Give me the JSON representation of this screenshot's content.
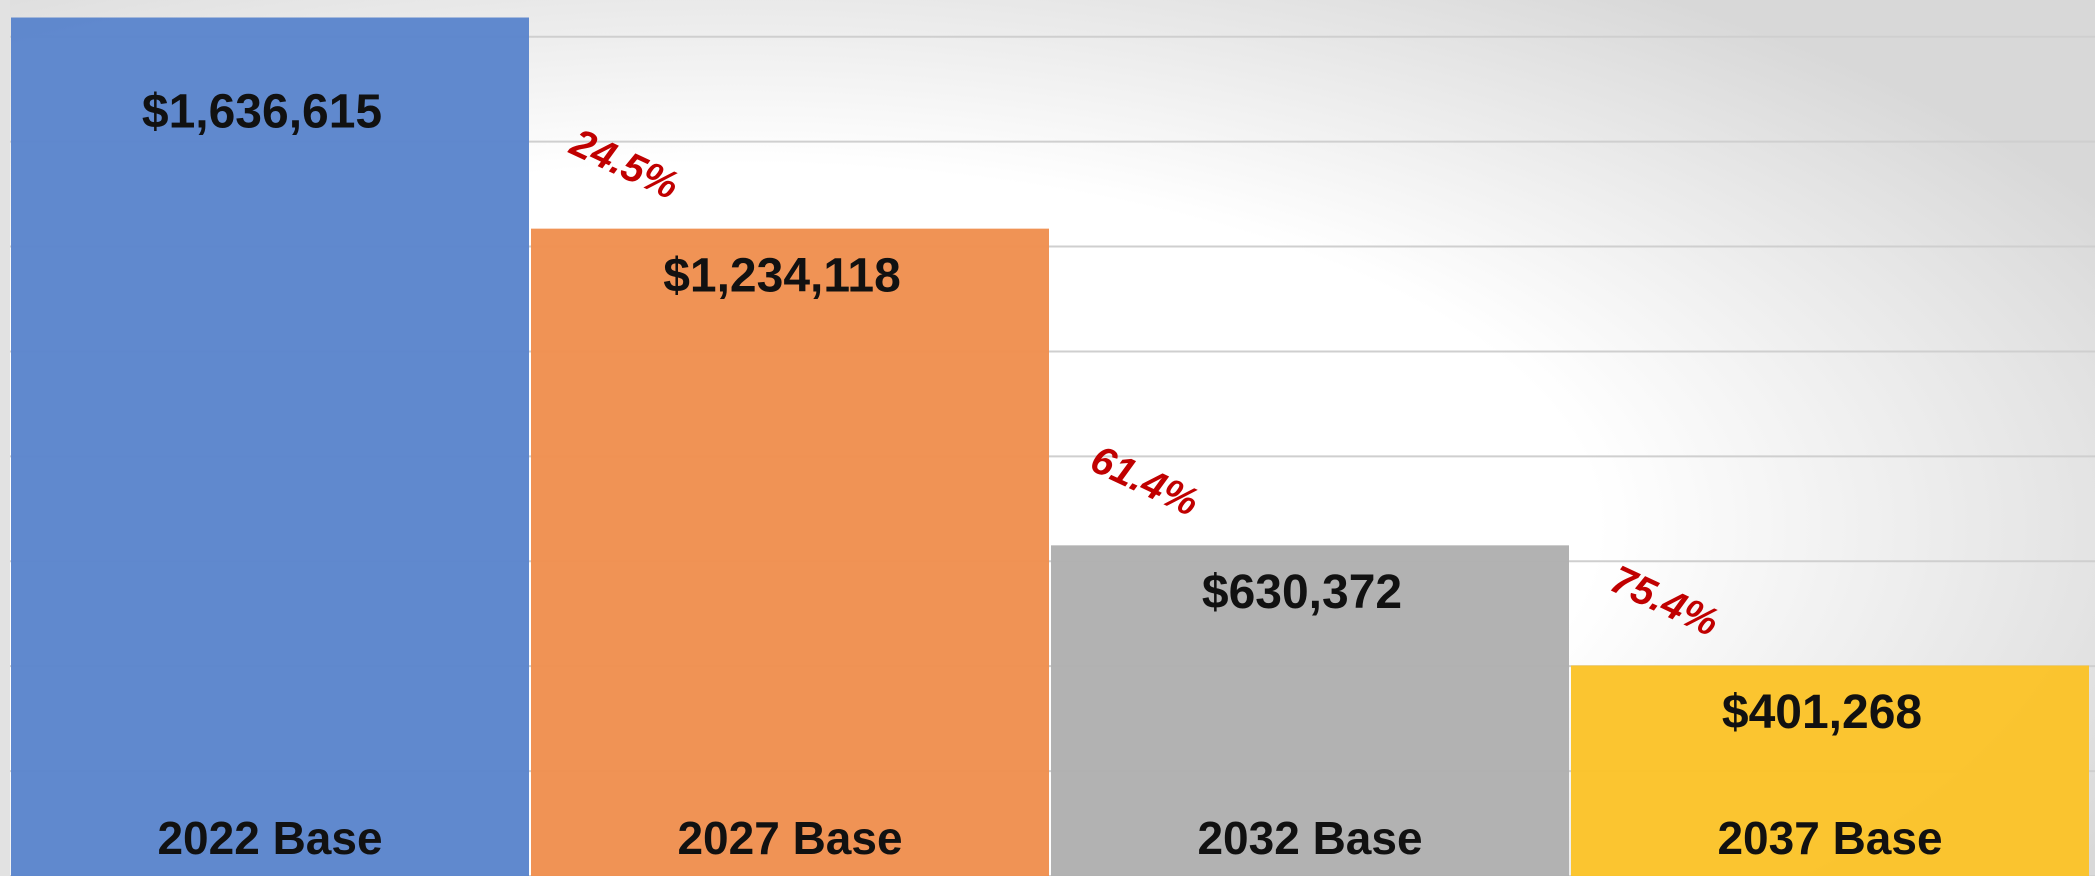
{
  "chart_data": {
    "type": "bar",
    "categories": [
      "2022 Base",
      "2027 Base",
      "2032 Base",
      "2037 Base"
    ],
    "values": [
      1636615,
      1234118,
      630372,
      401268
    ],
    "value_labels": [
      "$1,636,615",
      "$1,234,118",
      "$630,372",
      "$401,268"
    ],
    "colors": [
      "#5b85cc",
      "#ef8f4f",
      "#b0b0b0",
      "#fbc329"
    ],
    "annotations": [
      "24.5%",
      "61.4%",
      "75.4%"
    ],
    "ylim": [
      0,
      1670000
    ],
    "yticks": [
      0,
      200000,
      400000,
      600000,
      800000,
      1000000,
      1200000,
      1400000,
      1600000
    ],
    "grid": true
  }
}
